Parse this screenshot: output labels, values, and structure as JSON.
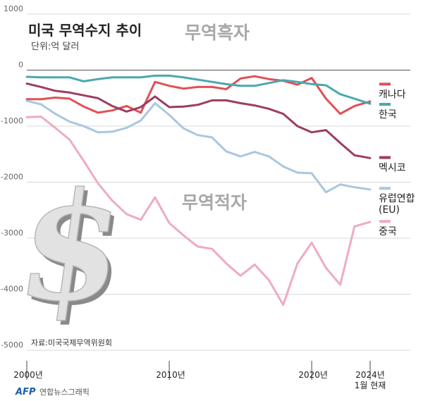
{
  "title": "미국 무역수지 추이",
  "subtitle": "단위:억 달러",
  "zone_labels": {
    "surplus": "무역흑자",
    "deficit": "무역적자"
  },
  "source": "자료:미국국제무역위원회",
  "footer": {
    "brand": "AFP",
    "credit": "연합뉴스그래픽"
  },
  "colors": {
    "canada": "#e05056",
    "korea": "#4aa8ad",
    "mexico": "#9c3d62",
    "eu": "#a9c7e1",
    "china": "#eeacc0",
    "grid": "#d8d8d8",
    "zero_line": "#555555"
  },
  "chart_data": {
    "type": "line",
    "title": "미국 무역수지 추이",
    "subtitle": "단위:억 달러",
    "ylim": [
      -5000,
      1000
    ],
    "yticks": [
      1000,
      0,
      -1000,
      -2000,
      -3000,
      -4000,
      -5000
    ],
    "ytick_labels": [
      "1000",
      "0",
      "-1000",
      "-2000",
      "-3000",
      "-4000",
      "-5000"
    ],
    "xlim": [
      2000,
      2024.1
    ],
    "xtick_values": [
      2000,
      2010,
      2020,
      2024.1
    ],
    "xtick_labels": [
      "2000년",
      "2010년",
      "2020년",
      "2024년\n1월 현재"
    ],
    "grid": true,
    "legend_position": "right",
    "x": [
      2000,
      2001,
      2002,
      2003,
      2004,
      2005,
      2006,
      2007,
      2008,
      2009,
      2010,
      2011,
      2012,
      2013,
      2014,
      2015,
      2016,
      2017,
      2018,
      2019,
      2020,
      2021,
      2022,
      2023,
      2024.1
    ],
    "series": [
      {
        "name": "캐나다",
        "color_key": "canada",
        "values": [
          -520,
          -520,
          -490,
          -510,
          -650,
          -760,
          -720,
          -640,
          -760,
          -210,
          -280,
          -330,
          -300,
          -300,
          -340,
          -150,
          -110,
          -160,
          -190,
          -260,
          -140,
          -510,
          -780,
          -640,
          -560
        ]
      },
      {
        "name": "한국",
        "color_key": "korea",
        "values": [
          -120,
          -130,
          -130,
          -130,
          -200,
          -160,
          -130,
          -130,
          -130,
          -100,
          -100,
          -130,
          -170,
          -210,
          -250,
          -280,
          -280,
          -230,
          -180,
          -210,
          -250,
          -270,
          -430,
          -510,
          -600
        ]
      },
      {
        "name": "멕시코",
        "color_key": "mexico",
        "values": [
          -240,
          -300,
          -370,
          -400,
          -450,
          -500,
          -640,
          -740,
          -660,
          -470,
          -660,
          -650,
          -620,
          -540,
          -540,
          -590,
          -630,
          -690,
          -780,
          -1000,
          -1110,
          -1070,
          -1300,
          -1520,
          -1570
        ]
      },
      {
        "name": "유럽연합(EU)",
        "color_key": "eu",
        "values": [
          -550,
          -610,
          -780,
          -920,
          -1000,
          -1110,
          -1100,
          -1030,
          -900,
          -590,
          -800,
          -1040,
          -1160,
          -1200,
          -1450,
          -1540,
          -1460,
          -1540,
          -1720,
          -1830,
          -1840,
          -2180,
          -2040,
          -2090,
          -2130
        ]
      },
      {
        "name": "중국",
        "color_key": "china",
        "values": [
          -840,
          -830,
          -1030,
          -1240,
          -1620,
          -2020,
          -2330,
          -2570,
          -2670,
          -2270,
          -2730,
          -2950,
          -3150,
          -3190,
          -3450,
          -3670,
          -3470,
          -3750,
          -4190,
          -3450,
          -3080,
          -3530,
          -3830,
          -2790,
          -2710
        ]
      }
    ]
  }
}
